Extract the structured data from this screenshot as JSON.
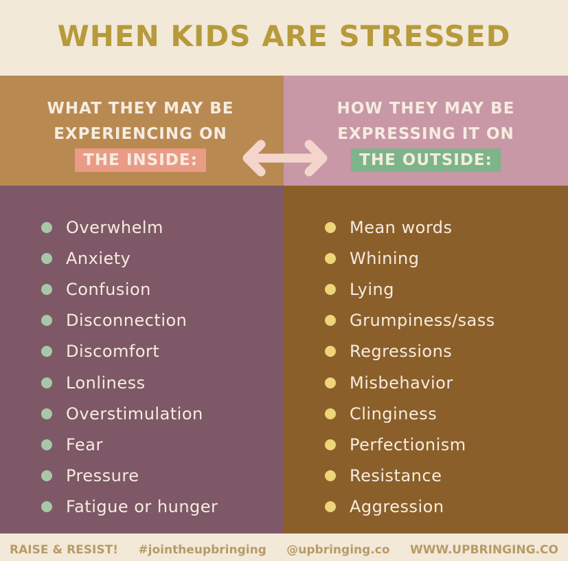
{
  "title": "WHEN KIDS ARE STRESSED",
  "inside": {
    "line1": "WHAT THEY MAY BE",
    "line2": "EXPERIENCING ON",
    "badge": "THE INSIDE:",
    "items": [
      "Overwhelm",
      "Anxiety",
      "Confusion",
      "Disconnection",
      "Discomfort",
      "Lonliness",
      "Overstimulation",
      "Fear",
      "Pressure",
      "Fatigue or hunger"
    ]
  },
  "outside": {
    "line1": "HOW THEY MAY BE",
    "line2": "EXPRESSING IT ON",
    "badge": "THE OUTSIDE:",
    "items": [
      "Mean words",
      "Whining",
      "Lying",
      "Grumpiness/sass",
      "Regressions",
      "Misbehavior",
      "Clinginess",
      "Perfectionism",
      "Resistance",
      "Aggression"
    ]
  },
  "footer": [
    "RAISE & RESIST!",
    "#jointheupbringing",
    "@upbringing.co",
    "WWW.UPBRINGING.CO"
  ],
  "icons": {
    "arrow": "double-arrow-icon"
  },
  "colors": {
    "title": "#b69a3c",
    "inside_badge": "#ea9b86",
    "outside_badge": "#7db489"
  }
}
